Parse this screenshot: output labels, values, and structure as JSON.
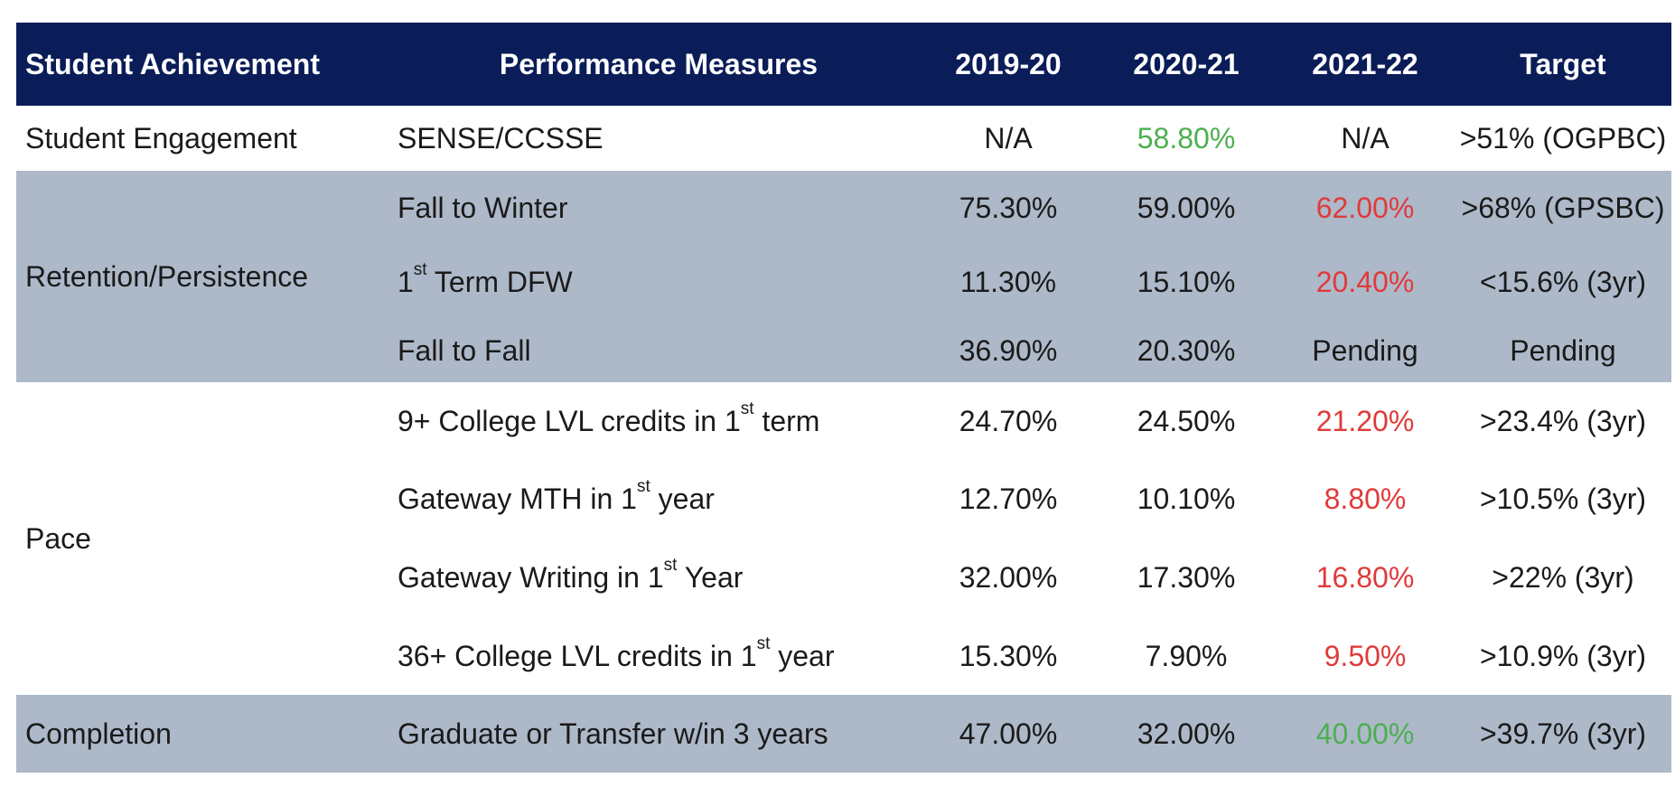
{
  "headers": {
    "category": "Student Achievement",
    "measures": "Performance Measures",
    "y1": "2019-20",
    "y2": "2020-21",
    "y3": "2021-22",
    "target": "Target"
  },
  "rows": [
    {
      "category": "Student Engagement",
      "measure_pre": "SENSE/CCSSE",
      "measure_sup": "",
      "measure_post": "",
      "y1": "N/A",
      "y2": "58.80%",
      "y3": "N/A",
      "target": ">51% (OGPBC)",
      "y2_color": "green",
      "y3_color": ""
    },
    {
      "category": "Retention/Persistence",
      "measure_pre": "Fall to Winter",
      "measure_sup": "",
      "measure_post": "",
      "y1": "75.30%",
      "y2": "59.00%",
      "y3": "62.00%",
      "target": ">68% (GPSBC)",
      "y2_color": "",
      "y3_color": "red"
    },
    {
      "category": "",
      "measure_pre": "1",
      "measure_sup": "st",
      "measure_post": " Term DFW",
      "y1": "11.30%",
      "y2": "15.10%",
      "y3": "20.40%",
      "target": "<15.6% (3yr)",
      "y2_color": "",
      "y3_color": "red"
    },
    {
      "category": "",
      "measure_pre": "Fall to Fall",
      "measure_sup": "",
      "measure_post": "",
      "y1": "36.90%",
      "y2": "20.30%",
      "y3": "Pending",
      "target": "Pending",
      "y2_color": "",
      "y3_color": ""
    },
    {
      "category": "Pace",
      "measure_pre": "9+ College LVL credits in 1",
      "measure_sup": "st",
      "measure_post": " term",
      "y1": "24.70%",
      "y2": "24.50%",
      "y3": "21.20%",
      "target": ">23.4% (3yr)",
      "y2_color": "",
      "y3_color": "red"
    },
    {
      "category": "",
      "measure_pre": "Gateway MTH in 1",
      "measure_sup": "st",
      "measure_post": " year",
      "y1": "12.70%",
      "y2": "10.10%",
      "y3": "8.80%",
      "target": ">10.5% (3yr)",
      "y2_color": "",
      "y3_color": "red"
    },
    {
      "category": "",
      "measure_pre": "Gateway Writing in 1",
      "measure_sup": "st",
      "measure_post": " Year",
      "y1": "32.00%",
      "y2": "17.30%",
      "y3": "16.80%",
      "target": ">22% (3yr)",
      "y2_color": "",
      "y3_color": "red"
    },
    {
      "category": "",
      "measure_pre": "36+ College LVL credits in 1",
      "measure_sup": "st",
      "measure_post": " year",
      "y1": "15.30%",
      "y2": "7.90%",
      "y3": "9.50%",
      "target": ">10.9% (3yr)",
      "y2_color": "",
      "y3_color": "red"
    },
    {
      "category": "Completion",
      "measure_pre": "Graduate or Transfer w/in 3 years",
      "measure_sup": "",
      "measure_post": "",
      "y1": "47.00%",
      "y2": "32.00%",
      "y3": "40.00%",
      "target": ">39.7% (3yr)",
      "y2_color": "",
      "y3_color": "green"
    }
  ],
  "colors": {
    "header_bg": "#0b1d58",
    "shaded_row": "#adb9c9",
    "green": "#4caf50",
    "red": "#e03a3a"
  }
}
